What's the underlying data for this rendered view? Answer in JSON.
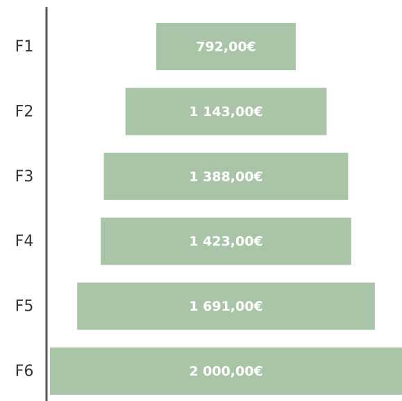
{
  "chart_data": {
    "type": "funnel",
    "categories": [
      "F1",
      "F2",
      "F3",
      "F4",
      "F5",
      "F6"
    ],
    "values": [
      792,
      1143,
      1388,
      1423,
      1691,
      2000
    ],
    "value_labels": [
      "792,00€",
      "1 143,00€",
      "1 388,00€",
      "1 423,00€",
      "1 691,00€",
      "2 000,00€"
    ],
    "color": "#a9c4a6"
  }
}
